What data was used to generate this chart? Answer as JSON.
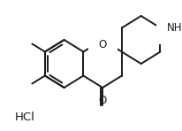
{
  "background_color": "#ffffff",
  "line_color": "#1a1a1a",
  "line_width": 1.4,
  "font_size": 8.5,
  "hcl_text": "HCl",
  "nh_text": "NH",
  "o_ring_text": "O",
  "o_keto_text": "O"
}
